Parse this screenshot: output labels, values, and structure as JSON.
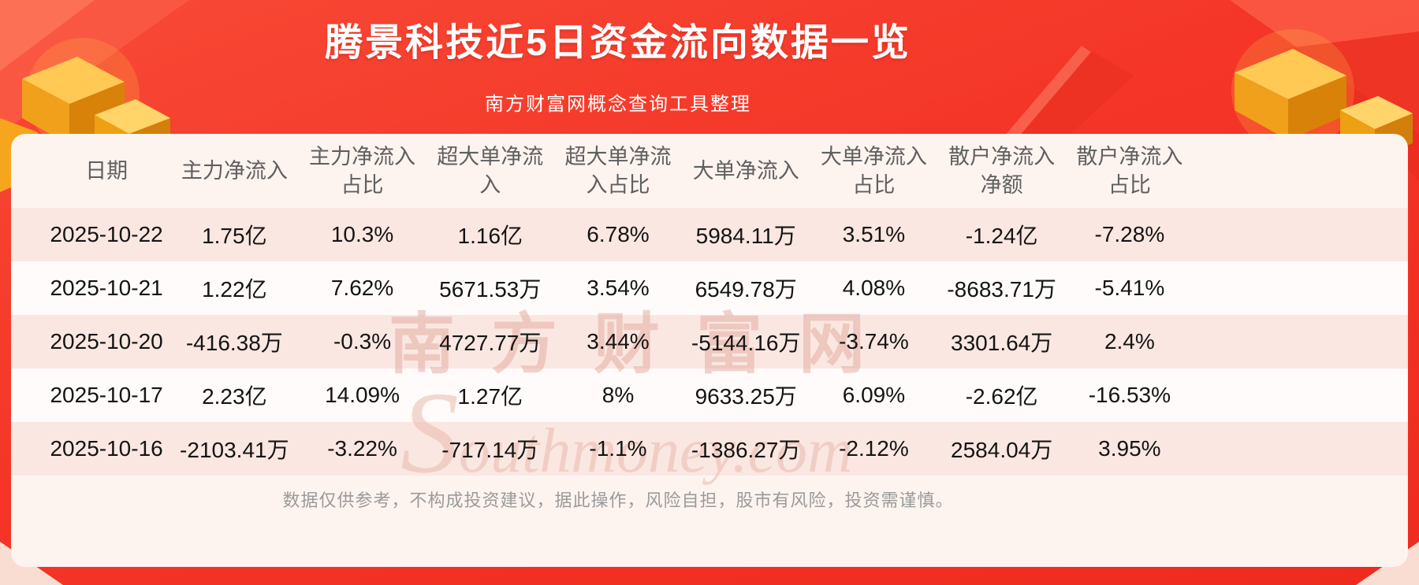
{
  "header": {
    "title": "腾景科技近5日资金流向数据一览",
    "subtitle": "南方财富网概念查询工具整理"
  },
  "chart_data": {
    "type": "table",
    "title": "腾景科技近5日资金流向数据一览",
    "columns": [
      "日期",
      "主力净流入",
      "主力净流入占比",
      "超大单净流入",
      "超大单净流入占比",
      "大单净流入",
      "大单净流入占比",
      "散户净流入净额",
      "散户净流入占比"
    ],
    "rows": [
      [
        "2025-10-22",
        "1.75亿",
        "10.3%",
        "1.16亿",
        "6.78%",
        "5984.11万",
        "3.51%",
        "-1.24亿",
        "-7.28%"
      ],
      [
        "2025-10-21",
        "1.22亿",
        "7.62%",
        "5671.53万",
        "3.54%",
        "6549.78万",
        "4.08%",
        "-8683.71万",
        "-5.41%"
      ],
      [
        "2025-10-20",
        "-416.38万",
        "-0.3%",
        "4727.77万",
        "3.44%",
        "-5144.16万",
        "-3.74%",
        "3301.64万",
        "2.4%"
      ],
      [
        "2025-10-17",
        "2.23亿",
        "14.09%",
        "1.27亿",
        "8%",
        "9633.25万",
        "6.09%",
        "-2.62亿",
        "-16.53%"
      ],
      [
        "2025-10-16",
        "-2103.41万",
        "-3.22%",
        "-717.14万",
        "-1.1%",
        "-1386.27万",
        "-2.12%",
        "2584.04万",
        "3.95%"
      ]
    ]
  },
  "watermark": {
    "cn": "南方财富网",
    "en": "Southmoney.com"
  },
  "footer": {
    "disclaimer": "数据仅供参考，不构成投资建议，据此操作，风险自担，股市有风险，投资需谨慎。"
  },
  "colors": {
    "background_red": "#f43527",
    "accent_gold": "#ffc24a",
    "card_background": "#fdf4f0",
    "row_stripe": "#fae7e1",
    "title_text": "#ffffff",
    "body_text": "#141414",
    "column_header_text": "#5f5f5f",
    "disclaimer_text": "#9a9a9a"
  }
}
